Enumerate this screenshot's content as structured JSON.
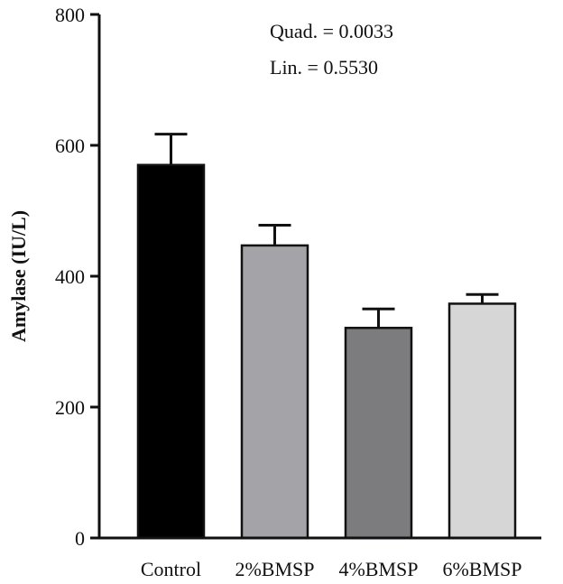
{
  "chart_data": {
    "type": "bar",
    "categories": [
      "Control",
      "2%BMSP",
      "4%BMSP",
      "6%BMSP"
    ],
    "values": [
      570,
      447,
      321,
      358
    ],
    "error_upper": [
      617,
      478,
      350,
      372
    ],
    "colors": [
      "#000000",
      "#a3a3a8",
      "#7c7c7e",
      "#d6d6d6"
    ],
    "ylabel": "Amylase (IU/L)",
    "xlabel": "",
    "ylim": [
      0,
      800
    ],
    "yticks": [
      0,
      200,
      400,
      600,
      800
    ],
    "annotations": [
      "Quad. = 0.0033",
      "Lin. = 0.5530"
    ],
    "grid": false
  }
}
